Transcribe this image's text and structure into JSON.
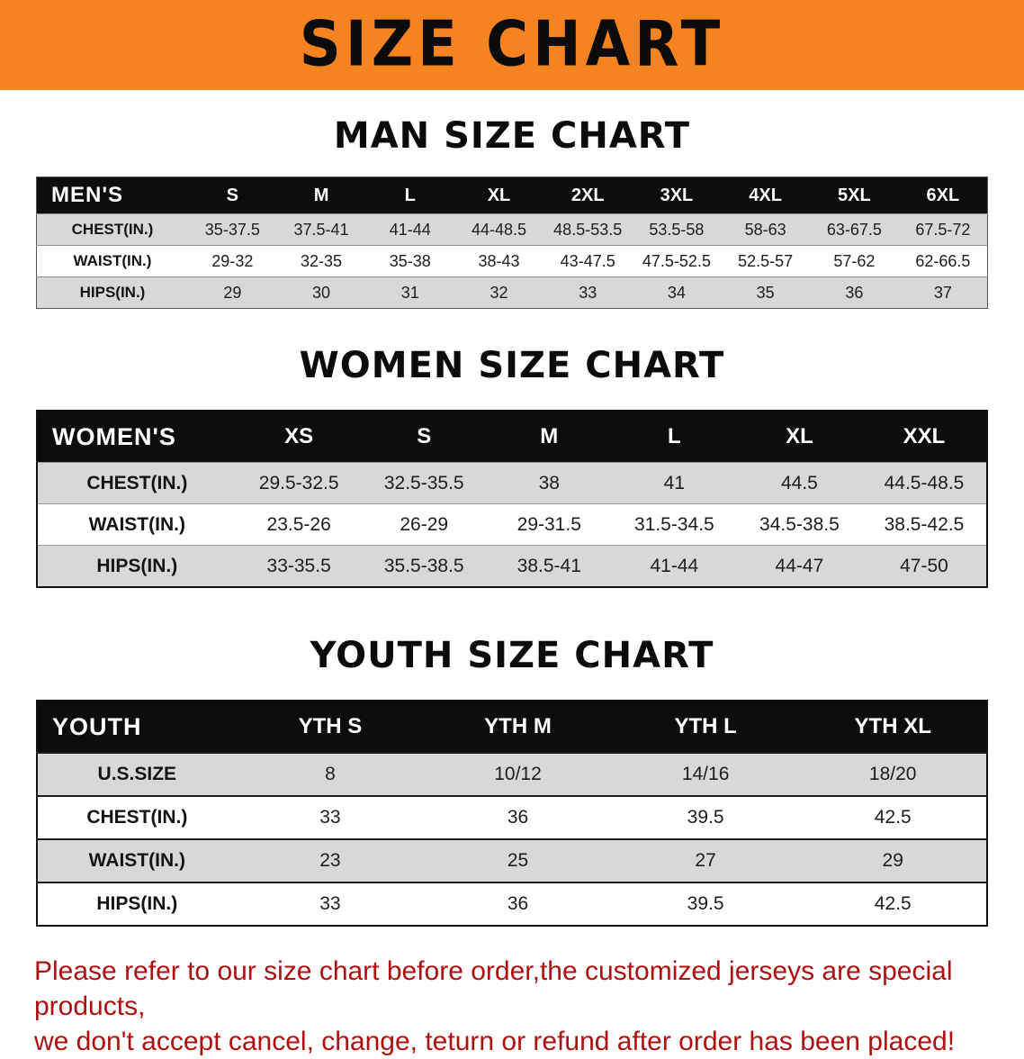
{
  "banner": {
    "title": "SIZE CHART",
    "bg_color": "#F5831F",
    "text_color": "#0B0B0B"
  },
  "sections": {
    "men": {
      "heading": "MAN SIZE CHART"
    },
    "women": {
      "heading": "WOMEN SIZE CHART"
    },
    "youth": {
      "heading": "YOUTH SIZE CHART"
    }
  },
  "chart_data": [
    {
      "type": "table",
      "title": "MAN SIZE CHART",
      "header": [
        "MEN'S",
        "S",
        "M",
        "L",
        "XL",
        "2XL",
        "3XL",
        "4XL",
        "5XL",
        "6XL"
      ],
      "rows": [
        [
          "CHEST(IN.)",
          "35-37.5",
          "37.5-41",
          "41-44",
          "44-48.5",
          "48.5-53.5",
          "53.5-58",
          "58-63",
          "63-67.5",
          "67.5-72"
        ],
        [
          "WAIST(IN.)",
          "29-32",
          "32-35",
          "35-38",
          "38-43",
          "43-47.5",
          "47.5-52.5",
          "52.5-57",
          "57-62",
          "62-66.5"
        ],
        [
          "HIPS(IN.)",
          "29",
          "30",
          "31",
          "32",
          "33",
          "34",
          "35",
          "36",
          "37"
        ]
      ],
      "header_bg": "#0D0D0D",
      "stripe_color": "#D8D8D8"
    },
    {
      "type": "table",
      "title": "WOMEN SIZE CHART",
      "header": [
        "WOMEN'S",
        "XS",
        "S",
        "M",
        "L",
        "XL",
        "XXL"
      ],
      "rows": [
        [
          "CHEST(IN.)",
          "29.5-32.5",
          "32.5-35.5",
          "38",
          "41",
          "44.5",
          "44.5-48.5"
        ],
        [
          "WAIST(IN.)",
          "23.5-26",
          "26-29",
          "29-31.5",
          "31.5-34.5",
          "34.5-38.5",
          "38.5-42.5"
        ],
        [
          "HIPS(IN.)",
          "33-35.5",
          "35.5-38.5",
          "38.5-41",
          "41-44",
          "44-47",
          "47-50"
        ]
      ],
      "header_bg": "#0D0D0D",
      "stripe_color": "#D8D8D8"
    },
    {
      "type": "table",
      "title": "YOUTH SIZE CHART",
      "header": [
        "YOUTH",
        "YTH S",
        "YTH M",
        "YTH L",
        "YTH XL"
      ],
      "rows": [
        [
          "U.S.SIZE",
          "8",
          "10/12",
          "14/16",
          "18/20"
        ],
        [
          "CHEST(IN.)",
          "33",
          "36",
          "39.5",
          "42.5"
        ],
        [
          "WAIST(IN.)",
          "23",
          "25",
          "27",
          "29"
        ],
        [
          "HIPS(IN.)",
          "33",
          "36",
          "39.5",
          "42.5"
        ]
      ],
      "header_bg": "#0D0D0D",
      "stripe_color": "#D8D8D8"
    }
  ],
  "disclaimer": {
    "color": "#AF1111",
    "lines": [
      "Please refer to our size chart before order,the customized jerseys are special products,",
      "we don't accept cancel, change, teturn or refund after order has been placed!"
    ]
  }
}
